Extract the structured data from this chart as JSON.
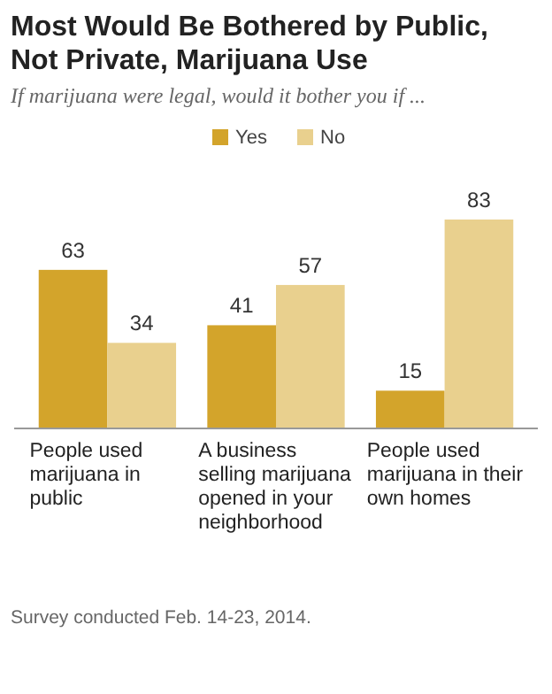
{
  "chart_data": {
    "type": "bar",
    "title": "Most Would Be Bothered by Public, Not Private, Marijuana Use",
    "subtitle": "If marijuana were legal, would it bother you if ...",
    "categories": [
      "People used marijuana in public",
      "A business selling marijuana opened in your neighborhood",
      "People used marijuana in their own homes"
    ],
    "series": [
      {
        "name": "Yes",
        "color": "#d3a42b",
        "values": [
          63,
          41,
          15
        ]
      },
      {
        "name": "No",
        "color": "#e9d08e",
        "values": [
          34,
          57,
          83
        ]
      }
    ],
    "data_labels": true,
    "legend": "top",
    "annotations": [
      "Survey conducted Feb. 14-23, 2014."
    ]
  }
}
